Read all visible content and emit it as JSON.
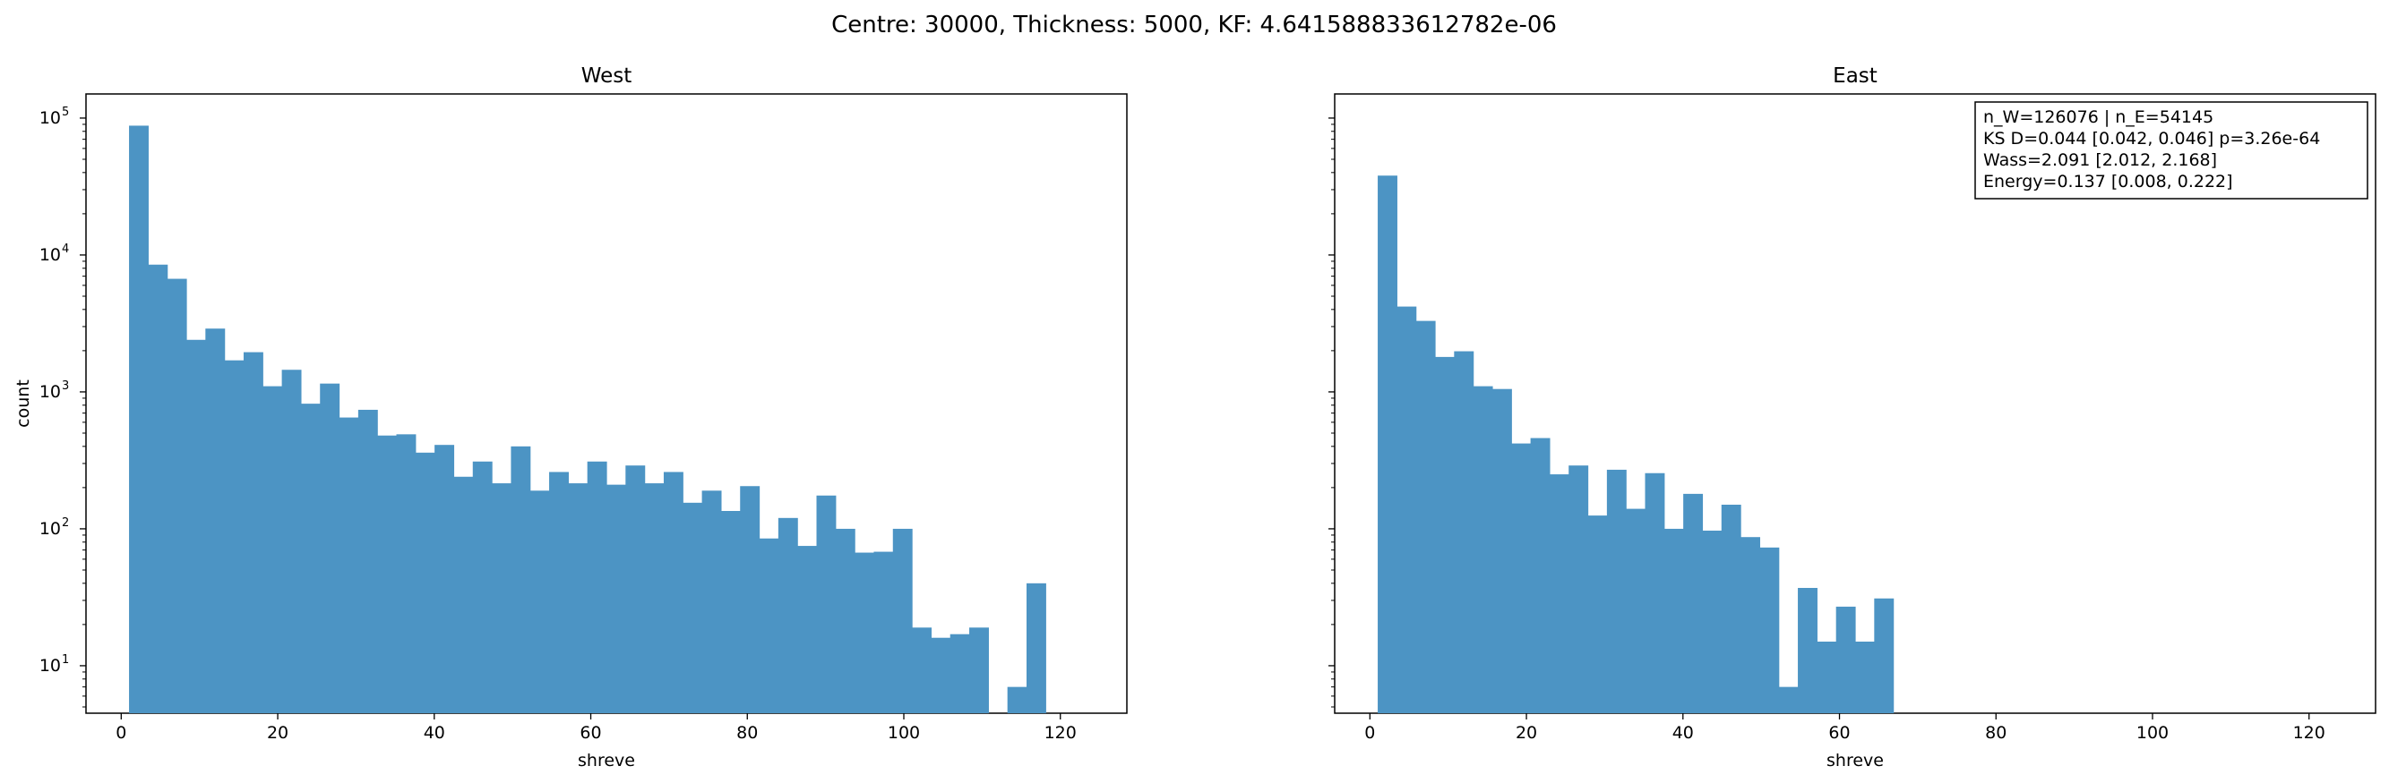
{
  "chart_data": [
    {
      "type": "bar",
      "title": "West",
      "xlabel": "shreve",
      "ylabel": "count",
      "yscale": "log",
      "xlim": [
        -4.5,
        128.5
      ],
      "ylim": [
        4.5,
        150000
      ],
      "x_ticks": [
        0,
        20,
        40,
        60,
        80,
        100,
        120
      ],
      "y_ticks": [
        {
          "base": "10",
          "exp": "1"
        },
        {
          "base": "10",
          "exp": "2"
        },
        {
          "base": "10",
          "exp": "3"
        },
        {
          "base": "10",
          "exp": "4"
        },
        {
          "base": "10",
          "exp": "5"
        }
      ],
      "bin_start": 1,
      "bin_width": 2.44,
      "values": [
        88000,
        8500,
        6700,
        2400,
        2900,
        1700,
        1950,
        1100,
        1450,
        820,
        1150,
        650,
        740,
        480,
        490,
        360,
        410,
        240,
        310,
        215,
        400,
        190,
        260,
        215,
        310,
        210,
        290,
        215,
        260,
        155,
        190,
        135,
        205,
        85,
        120,
        75,
        175,
        100,
        67,
        68,
        100,
        19,
        16,
        17,
        19,
        0,
        7,
        40
      ],
      "color": "#4c94c4",
      "grid": false,
      "legend": "none"
    },
    {
      "type": "bar",
      "title": "East",
      "xlabel": "shreve",
      "ylabel": "",
      "yscale": "log",
      "xlim": [
        -4.5,
        128.5
      ],
      "ylim": [
        4.5,
        150000
      ],
      "x_ticks": [
        0,
        20,
        40,
        60,
        80,
        100,
        120
      ],
      "bin_start": 1,
      "bin_width": 2.44,
      "values": [
        38000,
        4200,
        3300,
        1800,
        1980,
        1100,
        1050,
        420,
        460,
        250,
        290,
        125,
        270,
        140,
        255,
        100,
        180,
        97,
        150,
        87,
        73,
        7,
        37,
        15,
        27,
        15,
        31
      ],
      "color": "#4c94c4",
      "grid": false,
      "legend": "none",
      "annotation": [
        "n_W=126076 | n_E=54145",
        "KS D=0.044 [0.042, 0.046]  p=3.26e-64",
        "Wass=2.091 [2.012, 2.168]",
        "Energy=0.137 [0.008, 0.222]"
      ]
    }
  ],
  "figure": {
    "suptitle": "Centre: 30000, Thickness: 5000, KF: 4.641588833612782e-06"
  }
}
